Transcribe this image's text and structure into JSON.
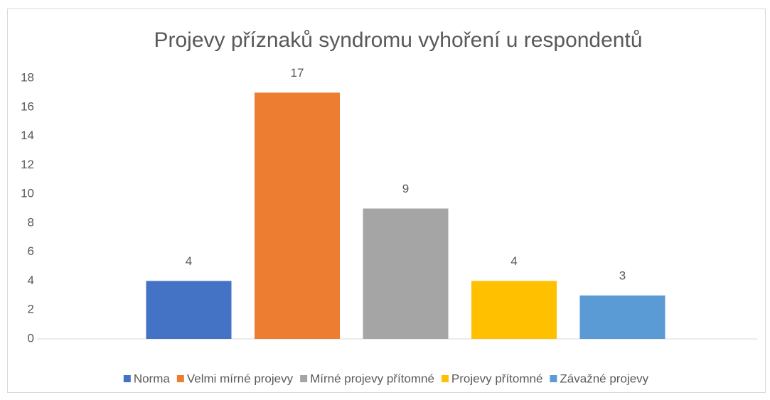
{
  "chart_data": {
    "type": "bar",
    "title": "Projevy příznaků syndromu vyhoření u respondentů",
    "series": [
      {
        "name": "Norma",
        "color": "#4472c4",
        "values": [
          4
        ]
      },
      {
        "name": "Velmi mírné projevy",
        "color": "#ed7d31",
        "values": [
          17
        ]
      },
      {
        "name": "Mírné projevy přítomné",
        "color": "#a5a5a5",
        "values": [
          9
        ]
      },
      {
        "name": "Projevy přítomné",
        "color": "#ffc000",
        "values": [
          4
        ]
      },
      {
        "name": "Závažné projevy",
        "color": "#5b9bd5",
        "values": [
          3
        ]
      }
    ],
    "ylim": [
      0,
      18
    ],
    "yticks": [
      0,
      2,
      4,
      6,
      8,
      10,
      12,
      14,
      16,
      18
    ],
    "grid": false,
    "legend": "bottom"
  }
}
